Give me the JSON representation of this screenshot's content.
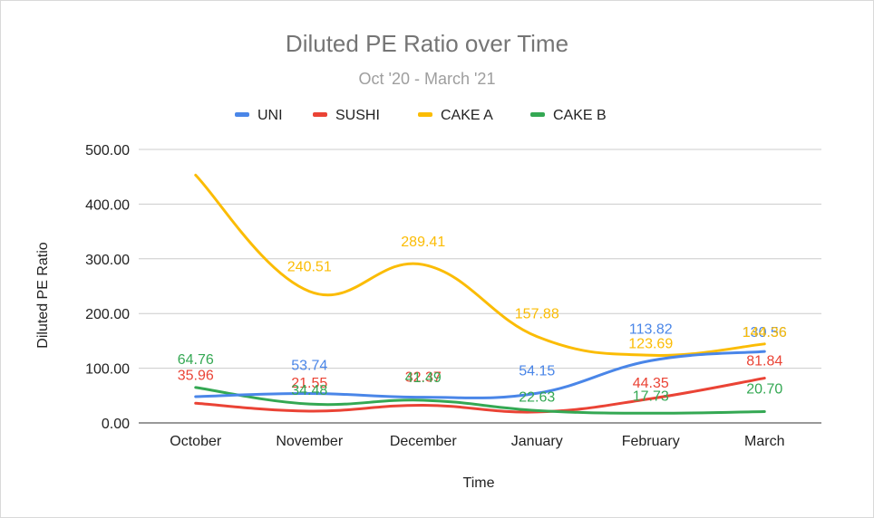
{
  "chart_data": {
    "type": "line",
    "title": "Diluted PE Ratio over Time",
    "subtitle": "Oct '20 - March '21",
    "xlabel": "Time",
    "ylabel": "Diluted PE Ratio",
    "categories": [
      "October",
      "November",
      "December",
      "January",
      "February",
      "March"
    ],
    "ylim": [
      0,
      500
    ],
    "yticks": [
      "0.00",
      "100.00",
      "200.00",
      "300.00",
      "400.00",
      "500.00"
    ],
    "grid": true,
    "legend": "top",
    "smooth": true,
    "series": [
      {
        "name": "UNI",
        "color": "#4a86e8",
        "values": [
          48,
          53.74,
          47,
          54.15,
          113.82,
          130.56
        ],
        "labels": [
          "",
          "53.74",
          "",
          "54.15",
          "113.82",
          "130.56"
        ]
      },
      {
        "name": "SUSHI",
        "color": "#ea4335",
        "values": [
          35.96,
          21.55,
          32.37,
          20,
          44.35,
          81.84
        ],
        "labels": [
          "35.96",
          "21.55",
          "32.37",
          "",
          "44.35",
          "81.84"
        ]
      },
      {
        "name": "CAKE A",
        "color": "#fbbc04",
        "values": [
          453,
          240.51,
          289.41,
          157.88,
          123.69,
          144.36
        ],
        "labels": [
          "",
          "240.51",
          "289.41",
          "157.88",
          "123.69",
          "144.36"
        ]
      },
      {
        "name": "CAKE B",
        "color": "#34a853",
        "values": [
          64.76,
          34.48,
          41.49,
          22.63,
          17.73,
          20.7
        ],
        "labels": [
          "64.76",
          "34.48",
          "41.49",
          "22.63",
          "17.73",
          "20.70"
        ]
      }
    ]
  }
}
